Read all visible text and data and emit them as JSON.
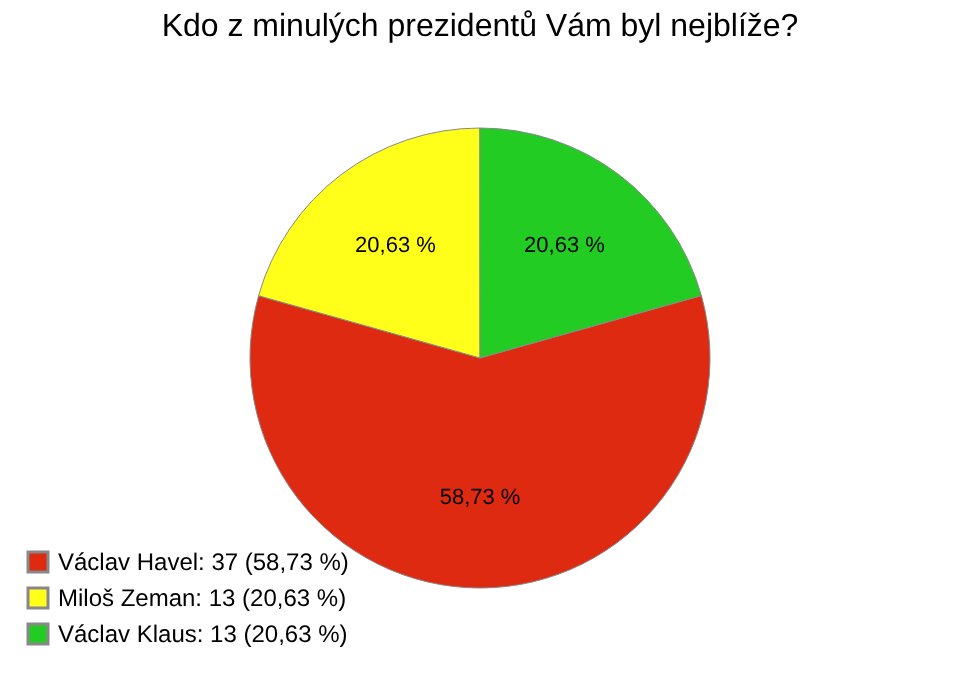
{
  "chart_data": {
    "type": "pie",
    "title": "Kdo z minulých prezidentů Vám byl nejblíže?",
    "categories": [
      "Václav Havel: 37 (58,73 %)",
      "Miloš Zeman: 13 (20,63 %)",
      "Václav Klaus: 13 (20,63 %)"
    ],
    "values": [
      58.73,
      20.63,
      20.63
    ],
    "value_labels": [
      "58,73 %",
      "20,63 %",
      "20,63 %"
    ],
    "colors": [
      "#dd2a10",
      "#ffff1a",
      "#22cc22"
    ],
    "legend": "bottom left"
  }
}
